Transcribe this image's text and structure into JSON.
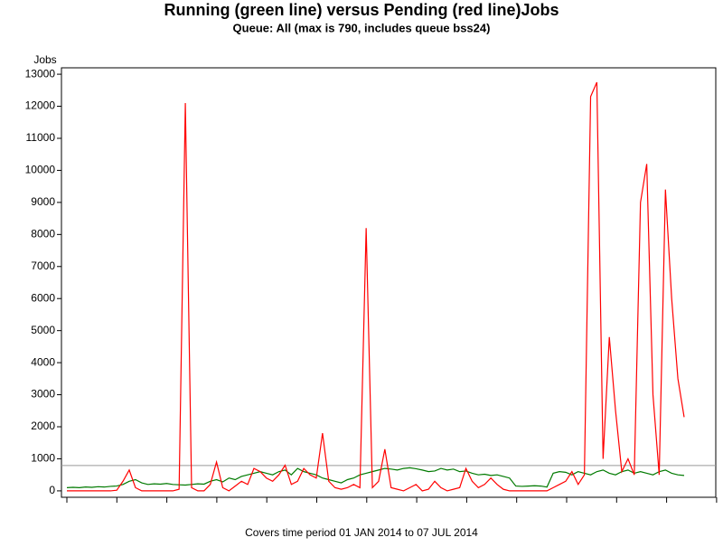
{
  "chart_data": {
    "type": "line",
    "title": "Running (green line) versus Pending (red line)Jobs",
    "subtitle": "Queue: All (max is 790, includes queue bss24)",
    "y_label": "Jobs",
    "x_label": "Covers time period 01 JAN 2014 to 07 JUL 2014",
    "reference_line": {
      "value": 790,
      "color": "#999999"
    },
    "ylim": [
      -200,
      13200
    ],
    "yticks": [
      0,
      1000,
      2000,
      3000,
      4000,
      5000,
      6000,
      7000,
      8000,
      9000,
      10000,
      11000,
      12000,
      13000
    ],
    "categories": [
      null,
      null,
      null,
      null,
      null,
      null,
      null,
      null,
      null,
      null,
      null,
      null,
      null,
      null,
      null,
      null,
      null,
      null,
      null,
      null,
      null,
      null,
      null,
      null,
      null,
      null,
      null,
      null,
      null,
      null,
      null,
      null,
      null,
      null,
      null,
      null,
      null,
      null,
      null,
      null,
      null,
      null,
      null,
      null,
      null,
      null,
      null,
      null,
      null,
      null,
      null,
      null,
      null,
      null,
      null,
      null,
      null,
      null,
      null,
      null,
      null,
      null,
      null,
      null,
      null,
      null,
      null,
      null,
      null,
      null,
      null,
      null,
      null,
      null,
      null,
      null,
      null,
      null,
      null,
      null,
      null,
      null,
      null,
      null,
      null,
      null,
      null,
      null,
      null,
      null,
      null,
      null,
      null,
      null,
      null,
      null,
      null,
      null,
      null,
      null
    ],
    "series": [
      {
        "name": "Running",
        "color": "#007a00",
        "values": [
          100,
          110,
          100,
          120,
          110,
          130,
          120,
          140,
          150,
          200,
          300,
          350,
          250,
          200,
          220,
          210,
          230,
          200,
          190,
          180,
          200,
          220,
          210,
          300,
          350,
          280,
          400,
          350,
          450,
          500,
          550,
          600,
          550,
          500,
          600,
          650,
          500,
          700,
          600,
          550,
          500,
          400,
          350,
          300,
          250,
          350,
          400,
          500,
          550,
          600,
          650,
          700,
          680,
          650,
          700,
          720,
          690,
          650,
          600,
          620,
          700,
          650,
          680,
          600,
          620,
          550,
          500,
          520,
          480,
          500,
          450,
          400,
          150,
          140,
          150,
          160,
          150,
          120,
          550,
          600,
          580,
          500,
          600,
          550,
          500,
          600,
          650,
          550,
          500,
          600,
          650,
          550,
          600,
          550,
          500,
          600,
          650,
          550,
          500,
          480
        ]
      },
      {
        "name": "Pending",
        "color": "#ff0000",
        "values": [
          0,
          0,
          0,
          0,
          0,
          0,
          0,
          0,
          20,
          300,
          650,
          100,
          0,
          0,
          0,
          0,
          0,
          0,
          50,
          12100,
          100,
          0,
          0,
          200,
          900,
          100,
          0,
          150,
          300,
          200,
          700,
          600,
          400,
          300,
          500,
          800,
          200,
          300,
          700,
          500,
          400,
          1800,
          300,
          100,
          50,
          100,
          200,
          100,
          8200,
          100,
          300,
          1300,
          100,
          50,
          0,
          100,
          200,
          0,
          50,
          300,
          100,
          0,
          50,
          100,
          700,
          300,
          100,
          200,
          400,
          200,
          50,
          0,
          0,
          0,
          0,
          0,
          0,
          0,
          100,
          200,
          300,
          600,
          200,
          500,
          12300,
          12750,
          1000,
          4800,
          2500,
          600,
          1000,
          500,
          9000,
          10200,
          3000,
          500,
          9400,
          6000,
          3500,
          2300
        ]
      }
    ]
  }
}
